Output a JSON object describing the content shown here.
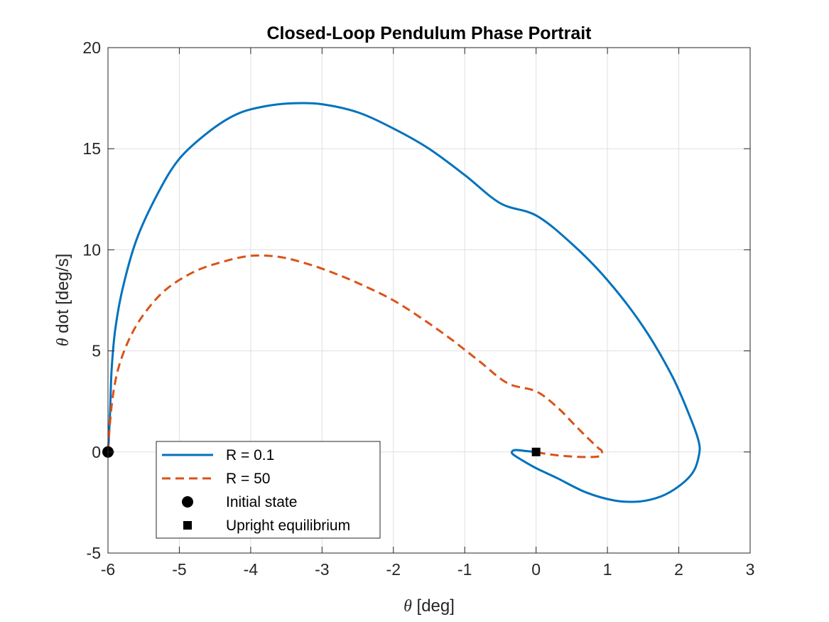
{
  "chart_data": {
    "type": "line",
    "title": "Closed-Loop Pendulum Phase Portrait",
    "xlabel_symbol": "θ",
    "xlabel_rest": " [deg]",
    "ylabel_symbol": "θ",
    "ylabel_rest": " dot [deg/s]",
    "xlim": [
      -6,
      3
    ],
    "ylim": [
      -5,
      20
    ],
    "xticks": [
      -6,
      -5,
      -4,
      -3,
      -2,
      -1,
      0,
      1,
      2,
      3
    ],
    "yticks": [
      -5,
      0,
      5,
      10,
      15,
      20
    ],
    "xtick_labels": [
      "-6",
      "-5",
      "-4",
      "-3",
      "-2",
      "-1",
      "0",
      "1",
      "2",
      "3"
    ],
    "ytick_labels": [
      "-5",
      "0",
      "5",
      "10",
      "15",
      "20"
    ],
    "grid": true,
    "legend_position": "bottom-left",
    "series": [
      {
        "name": "R = 0.1",
        "color": "#0072BD",
        "style": "solid",
        "x": [
          -6.0,
          -5.99,
          -5.97,
          -5.95,
          -5.9,
          -5.8,
          -5.6,
          -5.3,
          -5.0,
          -4.6,
          -4.2,
          -3.8,
          -3.4,
          -3.0,
          -2.5,
          -2.0,
          -1.5,
          -1.0,
          -0.5,
          0.0,
          0.5,
          1.0,
          1.5,
          1.9,
          2.15,
          2.28,
          2.28,
          2.2,
          2.0,
          1.75,
          1.45,
          1.1,
          0.7,
          0.3,
          0.0,
          -0.2,
          -0.33,
          -0.33,
          -0.28,
          -0.15,
          0.0
        ],
        "y": [
          0.0,
          0.5,
          2.0,
          4.0,
          6.0,
          8.0,
          10.5,
          12.8,
          14.5,
          15.8,
          16.7,
          17.1,
          17.25,
          17.2,
          16.8,
          16.0,
          15.0,
          13.7,
          12.3,
          11.7,
          10.3,
          8.5,
          6.2,
          3.8,
          1.8,
          0.5,
          -0.2,
          -1.0,
          -1.7,
          -2.2,
          -2.45,
          -2.4,
          -2.0,
          -1.3,
          -0.8,
          -0.4,
          -0.1,
          0.05,
          0.1,
          0.05,
          0.0
        ]
      },
      {
        "name": "R = 50",
        "color": "#D95319",
        "style": "dashed",
        "x": [
          -6.0,
          -5.99,
          -5.97,
          -5.93,
          -5.85,
          -5.7,
          -5.5,
          -5.2,
          -4.8,
          -4.4,
          -4.0,
          -3.6,
          -3.2,
          -2.8,
          -2.4,
          -2.0,
          -1.6,
          -1.2,
          -0.8,
          -0.4,
          0.0,
          0.3,
          0.55,
          0.75,
          0.87,
          0.92,
          0.9,
          0.7,
          0.4,
          0.15,
          0.0
        ],
        "y": [
          0.0,
          0.6,
          1.5,
          2.8,
          4.2,
          5.6,
          6.8,
          8.0,
          8.9,
          9.4,
          9.7,
          9.65,
          9.3,
          8.8,
          8.2,
          7.5,
          6.6,
          5.6,
          4.5,
          3.4,
          3.0,
          2.2,
          1.3,
          0.6,
          0.2,
          0.05,
          -0.2,
          -0.25,
          -0.2,
          -0.1,
          0.0
        ]
      },
      {
        "name": "Initial state",
        "color": "#000000",
        "marker": "circle",
        "x": [
          -6
        ],
        "y": [
          0
        ]
      },
      {
        "name": "Upright equilibrium",
        "color": "#000000",
        "marker": "square",
        "x": [
          0
        ],
        "y": [
          0
        ]
      }
    ]
  }
}
